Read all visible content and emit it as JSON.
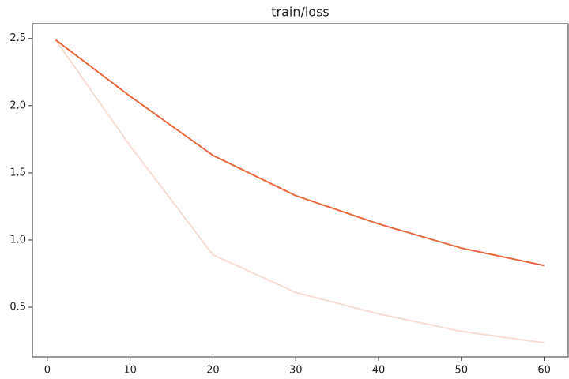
{
  "chart_data": {
    "type": "line",
    "title": "train/loss",
    "x": [
      1,
      10,
      20,
      30,
      40,
      50,
      60
    ],
    "series": [
      {
        "color": "#f7ddd3",
        "values": [
          2.49,
          1.7,
          0.89,
          0.61,
          0.45,
          0.32,
          0.235
        ]
      },
      {
        "color": "#e8693f",
        "values": [
          2.49,
          2.07,
          1.63,
          1.33,
          1.12,
          0.94,
          0.81
        ]
      }
    ],
    "xlim": [
      -1.8,
      62.9
    ],
    "xticks": [
      0,
      10,
      20,
      30,
      40,
      50,
      60
    ],
    "ylim": [
      0.13,
      2.61
    ],
    "yticks": [
      0.5,
      {
        "value": 1,
        "label": "1.0"
      },
      1.5,
      {
        "value": 2,
        "label": "2.0"
      },
      2.5
    ]
  }
}
